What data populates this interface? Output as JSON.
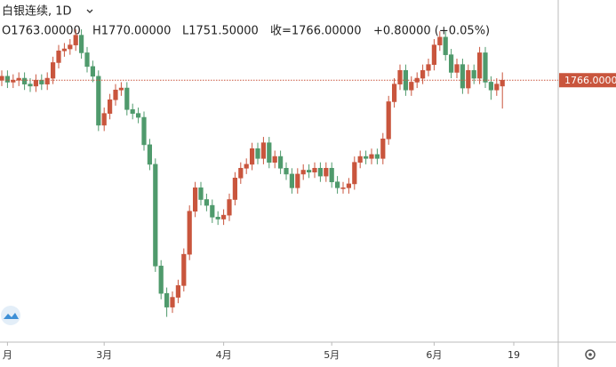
{
  "chart_data": {
    "type": "candlestick",
    "header": {
      "symbol": "白银连续, 1D",
      "open": "O1763.00000",
      "high": "H1770.00000",
      "low": "L1751.50000",
      "close": "收=1766.00000",
      "change": "+0.80000 (+0.05%)"
    },
    "categories": [
      null,
      "月",
      null,
      null,
      null,
      null,
      null,
      null,
      null,
      null,
      null,
      null,
      null,
      null,
      null,
      null,
      null,
      null,
      "3月",
      null,
      null,
      null,
      null,
      null,
      null,
      null,
      null,
      null,
      null,
      null,
      null,
      null,
      null,
      null,
      null,
      null,
      null,
      null,
      null,
      "4月",
      null,
      null,
      null,
      null,
      null,
      null,
      null,
      null,
      null,
      null,
      null,
      null,
      null,
      null,
      null,
      null,
      null,
      null,
      "5月",
      null,
      null,
      null,
      null,
      null,
      null,
      null,
      null,
      null,
      null,
      null,
      null,
      null,
      null,
      null,
      null,
      null,
      "6月",
      null,
      null,
      null,
      null,
      null,
      null,
      null,
      null,
      null,
      null,
      null,
      null,
      null,
      "19"
    ],
    "open": [
      1766,
      1768,
      1765,
      1766,
      1767,
      1764,
      1763,
      1766,
      1764,
      1767,
      1775,
      1781,
      1782,
      1784,
      1789,
      1780,
      1773,
      1768,
      1743,
      1749,
      1756,
      1761,
      1762,
      1751,
      1749,
      1747,
      1733,
      1723,
      1671,
      1657,
      1650,
      1655,
      1661,
      1677,
      1699,
      1711,
      1705,
      1702,
      1696,
      1695,
      1697,
      1705,
      1716,
      1721,
      1723,
      1731,
      1726,
      1734,
      1724,
      1727,
      1721,
      1718,
      1711,
      1718,
      1720,
      1719,
      1721,
      1717,
      1721,
      1714,
      1711,
      1711,
      1713,
      1724,
      1727,
      1726,
      1728,
      1726,
      1736,
      1755,
      1764,
      1771,
      1761,
      1765,
      1767,
      1771,
      1774,
      1784,
      1788,
      1779,
      1770,
      1774,
      1762,
      1771,
      1767,
      1780,
      1765,
      1761,
      1763,
      null,
      null
    ],
    "high": [
      1771,
      1771,
      1769,
      1770,
      1770,
      1767,
      1769,
      1769,
      1770,
      1778,
      1784,
      1785,
      1787,
      1792,
      1792,
      1783,
      1776,
      1771,
      1752,
      1759,
      1764,
      1765,
      1765,
      1754,
      1752,
      1750,
      1736,
      1726,
      1674,
      1660,
      1658,
      1664,
      1680,
      1702,
      1714,
      1714,
      1708,
      1705,
      1699,
      1700,
      1708,
      1719,
      1724,
      1726,
      1734,
      1734,
      1737,
      1737,
      1730,
      1730,
      1724,
      1721,
      1721,
      1723,
      1723,
      1724,
      1724,
      1724,
      1724,
      1717,
      1714,
      1716,
      1727,
      1730,
      1730,
      1731,
      1731,
      1739,
      1758,
      1767,
      1774,
      1774,
      1768,
      1770,
      1774,
      1777,
      1787,
      1791,
      1791,
      1782,
      1777,
      1777,
      1774,
      1774,
      1783,
      1783,
      1768,
      1767,
      1770,
      null,
      null
    ],
    "low": [
      1763,
      1762,
      1762,
      1763,
      1761,
      1760,
      1760,
      1761,
      1761,
      1764,
      1772,
      1778,
      1779,
      1781,
      1777,
      1770,
      1765,
      1740,
      1740,
      1746,
      1753,
      1758,
      1748,
      1746,
      1744,
      1730,
      1720,
      1668,
      1654,
      1645,
      1647,
      1652,
      1658,
      1674,
      1696,
      1702,
      1699,
      1693,
      1692,
      1692,
      1694,
      1702,
      1713,
      1718,
      1720,
      1723,
      1723,
      1721,
      1721,
      1718,
      1715,
      1708,
      1708,
      1715,
      1716,
      1716,
      1714,
      1714,
      1711,
      1708,
      1708,
      1708,
      1710,
      1721,
      1723,
      1723,
      1723,
      1723,
      1733,
      1752,
      1761,
      1758,
      1758,
      1762,
      1764,
      1768,
      1771,
      1781,
      1776,
      1767,
      1767,
      1759,
      1759,
      1764,
      1764,
      1762,
      1756,
      1758,
      1751.5,
      null,
      null
    ],
    "close": [
      1768,
      1765,
      1766,
      1767,
      1764,
      1763,
      1766,
      1764,
      1767,
      1775,
      1781,
      1782,
      1784,
      1789,
      1780,
      1773,
      1768,
      1743,
      1749,
      1756,
      1761,
      1762,
      1751,
      1749,
      1747,
      1733,
      1723,
      1671,
      1657,
      1650,
      1655,
      1661,
      1677,
      1699,
      1711,
      1705,
      1702,
      1696,
      1695,
      1697,
      1705,
      1716,
      1721,
      1723,
      1731,
      1726,
      1734,
      1724,
      1727,
      1721,
      1718,
      1711,
      1718,
      1720,
      1719,
      1721,
      1717,
      1721,
      1714,
      1711,
      1711,
      1713,
      1724,
      1727,
      1726,
      1728,
      1726,
      1736,
      1755,
      1764,
      1771,
      1761,
      1765,
      1767,
      1771,
      1774,
      1784,
      1788,
      1779,
      1770,
      1774,
      1762,
      1771,
      1767,
      1780,
      1765,
      1761,
      1764,
      1766,
      null,
      null
    ],
    "up_color": "#c9553d",
    "down_color": "#4f9a6c",
    "ylim": [
      1633,
      1807
    ],
    "last_price": {
      "value": 1766,
      "label": "1766.00000"
    }
  }
}
